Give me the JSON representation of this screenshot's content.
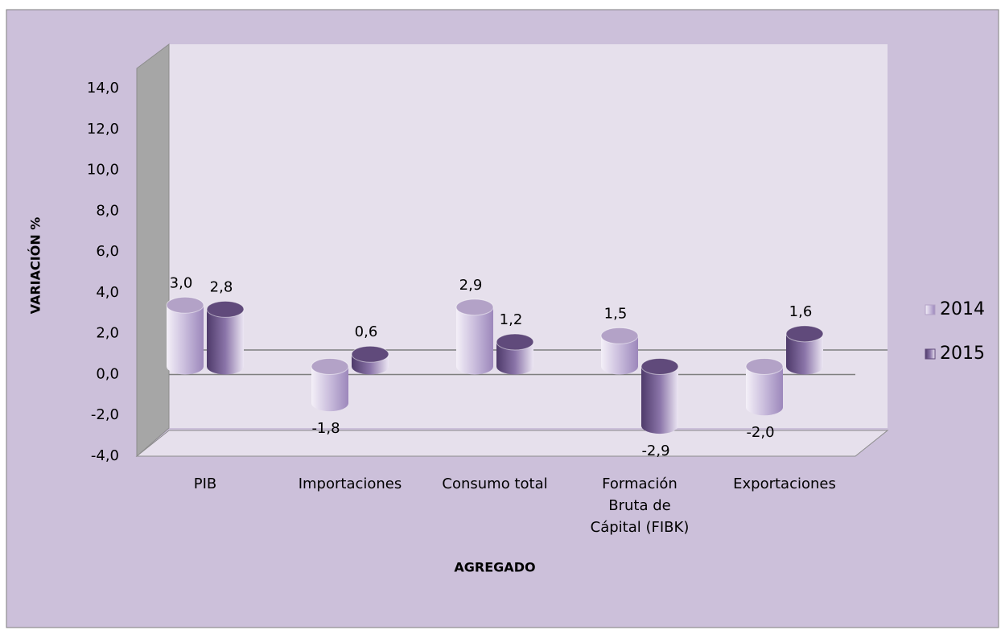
{
  "chart_data": {
    "type": "bar3d",
    "x_label": "AGREGADO",
    "y_label": "VARIACIÓN %",
    "categories": [
      "PIB",
      "Importaciones",
      "Consumo total",
      "Formación Bruta de Cápital (FIBK)",
      "Exportaciones"
    ],
    "series": [
      {
        "name": "2014",
        "color": "#b3a2c7",
        "values": [
          3.0,
          -1.8,
          2.9,
          1.5,
          -2.0
        ],
        "value_labels": [
          "3,0",
          "-1,8",
          "2,9",
          "1,5",
          "-2,0"
        ]
      },
      {
        "name": "2015",
        "color": "#604a7b",
        "values": [
          2.8,
          0.6,
          1.2,
          -2.9,
          1.6
        ],
        "value_labels": [
          "2,8",
          "0,6",
          "1,2",
          "-2,9",
          "1,6"
        ]
      }
    ],
    "ylim": [
      -4,
      14
    ],
    "yticks": [
      {
        "value": -4,
        "label": "-4,0"
      },
      {
        "value": -2,
        "label": "-2,0"
      },
      {
        "value": 0,
        "label": "0,0"
      },
      {
        "value": 2,
        "label": "2,0"
      },
      {
        "value": 4,
        "label": "4,0"
      },
      {
        "value": 6,
        "label": "6,0"
      },
      {
        "value": 8,
        "label": "8,0"
      },
      {
        "value": 10,
        "label": "10,0"
      },
      {
        "value": 12,
        "label": "12,0"
      },
      {
        "value": 14,
        "label": "14,0"
      }
    ],
    "grid": false,
    "legend": "right"
  }
}
